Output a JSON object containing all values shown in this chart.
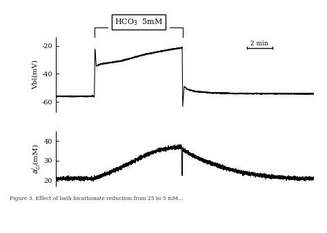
{
  "fig_width": 4.74,
  "fig_height": 3.39,
  "dpi": 100,
  "bg_color": "#ffffff",
  "vbl_yticks": [
    -60,
    -40,
    -20
  ],
  "vbl_ytick_labels": [
    "-60",
    "-40",
    "-20"
  ],
  "vbl_ylim": [
    -67,
    -14
  ],
  "acl_yticks": [
    20,
    30,
    40
  ],
  "acl_ytick_labels": [
    "20",
    "30",
    "40"
  ],
  "acl_ylim": [
    17,
    45
  ],
  "box_label": "HCO₃  5mM",
  "scale_bar_label": "2 min",
  "line_color": "#000000",
  "trace_lw": 0.8,
  "caption": "Figure 3. Effect of bath bicarbonate reduction from 25 to 5 mM..."
}
